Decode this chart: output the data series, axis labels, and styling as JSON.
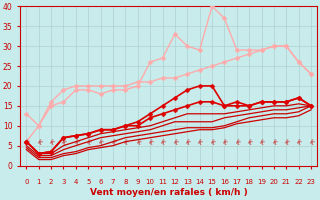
{
  "xlabel": "Vent moyen/en rafales ( km/h )",
  "bg_color": "#c8ecec",
  "grid_color": "#b0d0d0",
  "x": [
    0,
    1,
    2,
    3,
    4,
    5,
    6,
    7,
    8,
    9,
    10,
    11,
    12,
    13,
    14,
    15,
    16,
    17,
    18,
    19,
    20,
    21,
    22,
    23
  ],
  "lines": [
    {
      "y": [
        6,
        10,
        15,
        16,
        19,
        19,
        18,
        19,
        19,
        20,
        26,
        27,
        33,
        30,
        29,
        40,
        37,
        29,
        29,
        29,
        30,
        30,
        26,
        23
      ],
      "color": "#ffaaaa",
      "marker": "D",
      "markersize": 2.5,
      "linewidth": 1.0,
      "zorder": 3
    },
    {
      "y": [
        13,
        10,
        16,
        19,
        20,
        20,
        20,
        20,
        20,
        21,
        21,
        22,
        22,
        23,
        24,
        25,
        26,
        27,
        28,
        29,
        30,
        30,
        26,
        23
      ],
      "color": "#ffaaaa",
      "marker": "D",
      "markersize": 2.5,
      "linewidth": 1.0,
      "zorder": 3
    },
    {
      "y": [
        6,
        3,
        3.5,
        7,
        7.5,
        8,
        9,
        9,
        10,
        11,
        13,
        15,
        17,
        19,
        20,
        20,
        15,
        16,
        15,
        16,
        16,
        16,
        17,
        15
      ],
      "color": "#dd0000",
      "marker": "D",
      "markersize": 2.5,
      "linewidth": 1.2,
      "zorder": 4
    },
    {
      "y": [
        6,
        3,
        3.5,
        7,
        7.5,
        8,
        9,
        9,
        10,
        10,
        12,
        13,
        14,
        15,
        16,
        16,
        15,
        15,
        15,
        16,
        16,
        16,
        17,
        15
      ],
      "color": "#dd0000",
      "marker": "D",
      "markersize": 2.5,
      "linewidth": 1.2,
      "zorder": 4
    },
    {
      "y": [
        6,
        3,
        3,
        5,
        6,
        7,
        8,
        8.5,
        9,
        9.5,
        10,
        11,
        12,
        13,
        13,
        13,
        13,
        13.5,
        14,
        14.5,
        15,
        15,
        15.5,
        15
      ],
      "color": "#cc0000",
      "marker": null,
      "markersize": 0,
      "linewidth": 0.9,
      "zorder": 2
    },
    {
      "y": [
        5,
        2.5,
        2.5,
        4,
        5,
        6,
        7,
        7.5,
        8,
        8.5,
        9,
        10,
        11,
        11,
        11,
        11,
        12,
        12.5,
        13,
        13.5,
        14,
        14,
        14.5,
        15
      ],
      "color": "#cc0000",
      "marker": null,
      "markersize": 0,
      "linewidth": 0.9,
      "zorder": 2
    },
    {
      "y": [
        4.5,
        2,
        2,
        3,
        3.5,
        4.5,
        5,
        6,
        7,
        7.5,
        8,
        8.5,
        9,
        9.5,
        9.5,
        9.5,
        10,
        11,
        12,
        12.5,
        13,
        13,
        13.5,
        15
      ],
      "color": "#cc0000",
      "marker": null,
      "markersize": 0,
      "linewidth": 0.9,
      "zorder": 2
    },
    {
      "y": [
        4,
        1.5,
        1.5,
        2.5,
        3,
        4,
        4.5,
        5,
        6,
        6.5,
        7,
        7.5,
        8,
        8.5,
        9,
        9,
        9.5,
        10.5,
        11,
        11.5,
        12,
        12,
        12.5,
        14
      ],
      "color": "#cc0000",
      "marker": null,
      "markersize": 0,
      "linewidth": 0.9,
      "zorder": 2
    }
  ],
  "xlim": [
    -0.5,
    23.5
  ],
  "ylim": [
    0,
    40
  ],
  "yticks": [
    0,
    5,
    10,
    15,
    20,
    25,
    30,
    35,
    40
  ],
  "xticks": [
    0,
    1,
    2,
    3,
    4,
    5,
    6,
    7,
    8,
    9,
    10,
    11,
    12,
    13,
    14,
    15,
    16,
    17,
    18,
    19,
    20,
    21,
    22,
    23
  ],
  "tick_color": "#cc0000",
  "label_color": "#cc0000",
  "axis_color": "#cc0000",
  "arrow_symbol": "⚓"
}
